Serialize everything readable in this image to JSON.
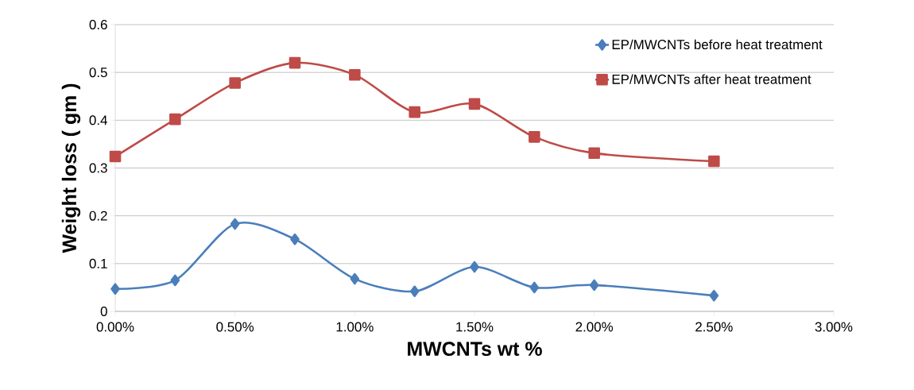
{
  "chart_data": {
    "type": "line",
    "xlabel": "MWCNTs wt %",
    "ylabel": "Weight loss ( gm )",
    "x": [
      0,
      0.25,
      0.5,
      0.75,
      1.0,
      1.25,
      1.5,
      1.75,
      2.0,
      2.5
    ],
    "series": [
      {
        "name": "EP/MWCNTs before heat treatment",
        "color": "#4a7ebb",
        "marker": "diamond",
        "values": [
          0.047,
          0.065,
          0.183,
          0.151,
          0.068,
          0.042,
          0.093,
          0.05,
          0.055,
          0.033
        ]
      },
      {
        "name": "EP/MWCNTs after heat treatment",
        "color": "#be4b48",
        "marker": "square",
        "values": [
          0.324,
          0.402,
          0.478,
          0.52,
          0.495,
          0.417,
          0.434,
          0.365,
          0.331,
          0.314
        ]
      }
    ],
    "xlim": [
      0,
      3
    ],
    "xticks": [
      {
        "value": 0,
        "label": "0.00%"
      },
      {
        "value": 0.5,
        "label": "0.50%"
      },
      {
        "value": 1.0,
        "label": "1.00%"
      },
      {
        "value": 1.5,
        "label": "1.50%"
      },
      {
        "value": 2.0,
        "label": "2.00%"
      },
      {
        "value": 2.5,
        "label": "2.50%"
      },
      {
        "value": 3.0,
        "label": "3.00%"
      }
    ],
    "ylim": [
      0,
      0.6
    ],
    "yticks": [
      0,
      0.1,
      0.2,
      0.3,
      0.4,
      0.5,
      0.6
    ],
    "grid": "y",
    "legend": "top right",
    "line_style": "solid"
  }
}
